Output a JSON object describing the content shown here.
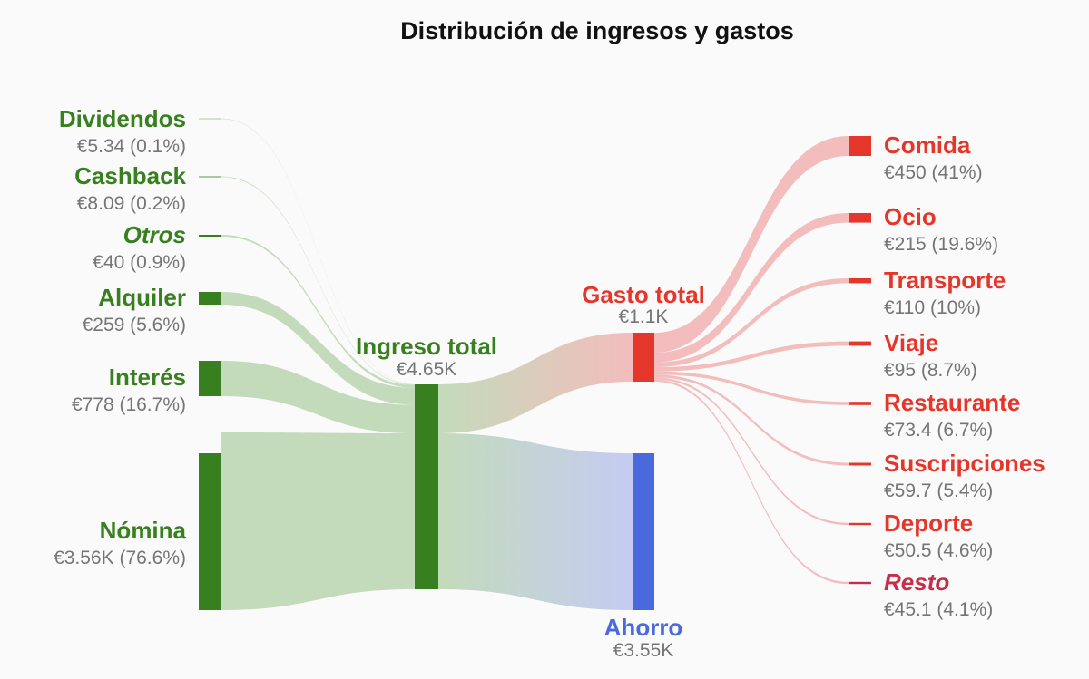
{
  "title": "Distribución de ingresos y gastos",
  "colors": {
    "income": "#38801f",
    "income_flow": "#c3dbbb",
    "expense": "#e5362b",
    "expense_flow": "#f3bdbd",
    "savings": "#4a69dc",
    "savings_flow": "#c4ccf2",
    "resto": "#c52f49",
    "value_text": "#757575"
  },
  "nodes": {
    "dividendos": {
      "label": "Dividendos",
      "value": "€5.34 (0.1%)"
    },
    "cashback": {
      "label": "Cashback",
      "value": "€8.09 (0.2%)"
    },
    "otros": {
      "label": "Otros",
      "value": "€40 (0.9%)"
    },
    "alquiler": {
      "label": "Alquiler",
      "value": "€259 (5.6%)"
    },
    "interes": {
      "label": "Interés",
      "value": "€778 (16.7%)"
    },
    "nomina": {
      "label": "Nómina",
      "value": "€3.56K (76.6%)"
    },
    "ingreso_total": {
      "label": "Ingreso total",
      "value": "€4.65K"
    },
    "gasto_total": {
      "label": "Gasto total",
      "value": "€1.1K"
    },
    "ahorro": {
      "label": "Ahorro",
      "value": "€3.55K"
    },
    "comida": {
      "label": "Comida",
      "value": "€450 (41%)"
    },
    "ocio": {
      "label": "Ocio",
      "value": "€215 (19.6%)"
    },
    "transporte": {
      "label": "Transporte",
      "value": "€110 (10%)"
    },
    "viaje": {
      "label": "Viaje",
      "value": "€95 (8.7%)"
    },
    "restaurante": {
      "label": "Restaurante",
      "value": "€73.4 (6.7%)"
    },
    "suscripciones": {
      "label": "Suscripciones",
      "value": "€59.7 (5.4%)"
    },
    "deporte": {
      "label": "Deporte",
      "value": "€50.5 (4.6%)"
    },
    "resto": {
      "label": "Resto",
      "value": "€45.1 (4.1%)"
    }
  },
  "chart_data": {
    "type": "sankey",
    "title": "Distribución de ingresos y gastos",
    "links": [
      {
        "source": "Dividendos",
        "target": "Ingreso total",
        "value": 5.34
      },
      {
        "source": "Cashback",
        "target": "Ingreso total",
        "value": 8.09
      },
      {
        "source": "Otros",
        "target": "Ingreso total",
        "value": 40
      },
      {
        "source": "Alquiler",
        "target": "Ingreso total",
        "value": 259
      },
      {
        "source": "Interés",
        "target": "Ingreso total",
        "value": 778
      },
      {
        "source": "Nómina",
        "target": "Ingreso total",
        "value": 3560
      },
      {
        "source": "Ingreso total",
        "target": "Gasto total",
        "value": 1100
      },
      {
        "source": "Ingreso total",
        "target": "Ahorro",
        "value": 3550
      },
      {
        "source": "Gasto total",
        "target": "Comida",
        "value": 450
      },
      {
        "source": "Gasto total",
        "target": "Ocio",
        "value": 215
      },
      {
        "source": "Gasto total",
        "target": "Transporte",
        "value": 110
      },
      {
        "source": "Gasto total",
        "target": "Viaje",
        "value": 95
      },
      {
        "source": "Gasto total",
        "target": "Restaurante",
        "value": 73.4
      },
      {
        "source": "Gasto total",
        "target": "Suscripciones",
        "value": 59.7
      },
      {
        "source": "Gasto total",
        "target": "Deporte",
        "value": 50.5
      },
      {
        "source": "Gasto total",
        "target": "Resto",
        "value": 45.1
      }
    ]
  }
}
